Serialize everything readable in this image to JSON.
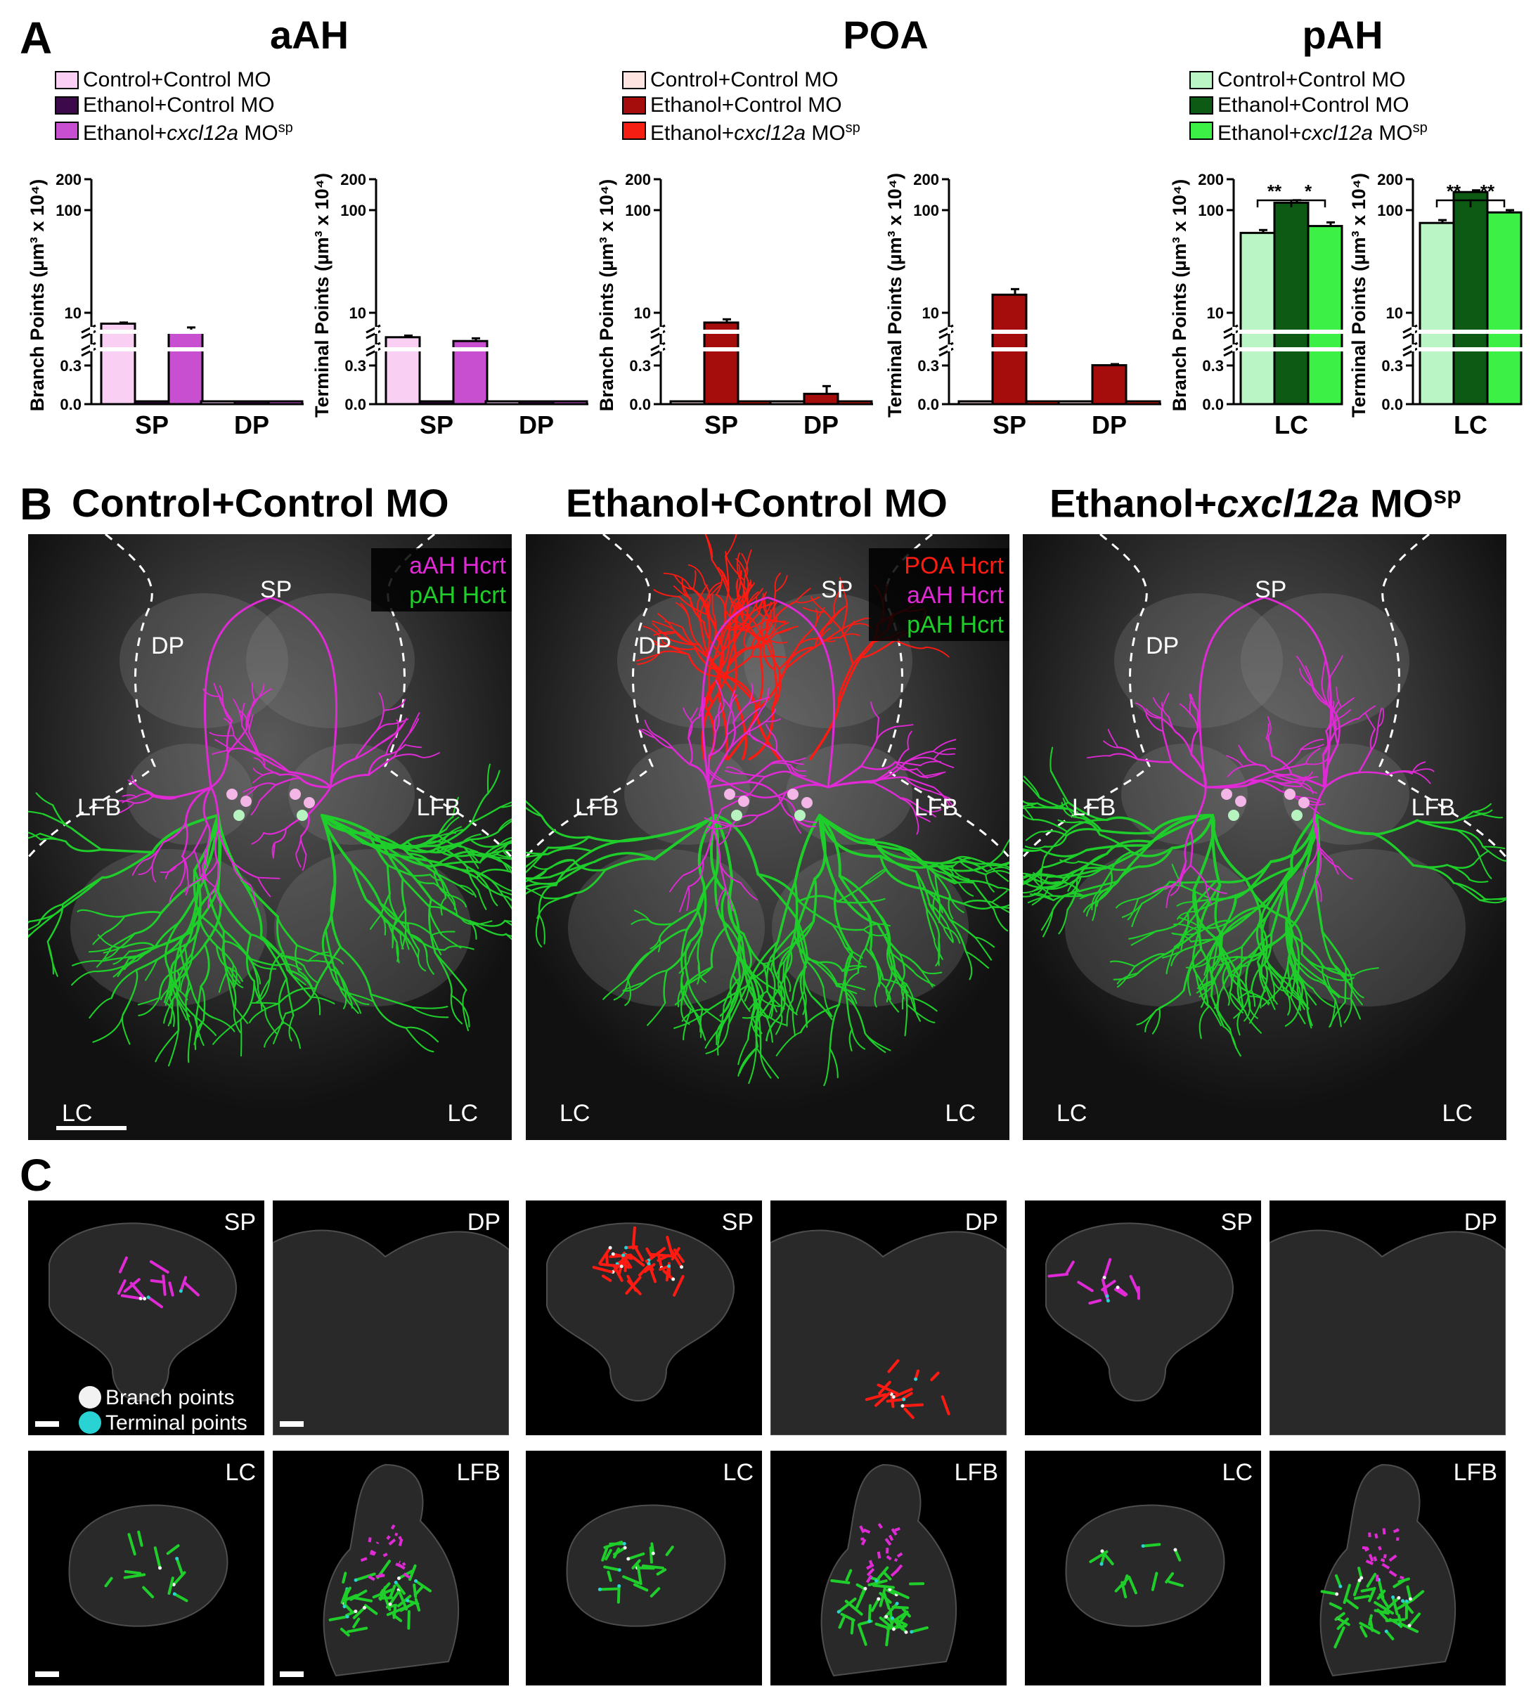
{
  "panel_letters": {
    "a": "A",
    "b": "B",
    "c": "C"
  },
  "regions": {
    "aah": "aAH",
    "poa": "POA",
    "pah": "pAH"
  },
  "legends": {
    "aah": [
      {
        "label": "Control+Control MO",
        "color": "#f9d0f3"
      },
      {
        "label": "Ethanol+Control MO",
        "color": "#3c0a4a"
      },
      {
        "label_pre": "Ethanol+",
        "label_italic": "cxcl12a",
        "label_post": " MO",
        "label_sup": "sp",
        "color": "#c84fcf"
      }
    ],
    "poa": [
      {
        "label": "Control+Control MO",
        "color": "#fde4e0"
      },
      {
        "label": "Ethanol+Control MO",
        "color": "#a50d0d"
      },
      {
        "label_pre": "Ethanol+",
        "label_italic": "cxcl12a",
        "label_post": " MO",
        "label_sup": "sp",
        "color": "#f41e12"
      }
    ],
    "pah": [
      {
        "label": "Control+Control MO",
        "color": "#baf5c6"
      },
      {
        "label": "Ethanol+Control MO",
        "color": "#0c5a14"
      },
      {
        "label_pre": "Ethanol+",
        "label_italic": "cxcl12a",
        "label_post": " MO",
        "label_sup": "sp",
        "color": "#3df046"
      }
    ]
  },
  "chart_data": [
    {
      "type": "bar",
      "region": "aAH",
      "ylabel": "Branch Points (µm³ x 10⁴)",
      "categories": [
        "SP",
        "DP"
      ],
      "series": [
        {
          "values": [
            8,
            0.0
          ]
        },
        {
          "values": [
            0.0,
            0.0
          ]
        },
        {
          "values": [
            6.5,
            0.0
          ]
        }
      ],
      "errors": [
        [
          0.2,
          0
        ],
        [
          0,
          0
        ],
        [
          0.8,
          0
        ]
      ],
      "ticks": [
        "0.0",
        "0.3",
        "10",
        "100",
        "200"
      ],
      "colors": [
        "#f9d0f3",
        "#3c0a4a",
        "#c84fcf"
      ],
      "significance": []
    },
    {
      "type": "bar",
      "region": "aAH",
      "ylabel": "Terminal Points (µm³ x 10⁴)",
      "categories": [
        "SP",
        "DP"
      ],
      "series": [
        {
          "values": [
            5.5,
            0.0
          ]
        },
        {
          "values": [
            0.0,
            0.0
          ]
        },
        {
          "values": [
            4.8,
            0.0
          ]
        }
      ],
      "errors": [
        [
          0.3,
          0
        ],
        [
          0,
          0
        ],
        [
          0.5,
          0
        ]
      ],
      "ticks": [
        "0.0",
        "0.3",
        "10",
        "100",
        "200"
      ],
      "colors": [
        "#f9d0f3",
        "#3c0a4a",
        "#c84fcf"
      ],
      "significance": []
    },
    {
      "type": "bar",
      "region": "POA",
      "ylabel": "Branch Points (µm³ x 10⁴)",
      "categories": [
        "SP",
        "DP"
      ],
      "series": [
        {
          "values": [
            0.0,
            0.0
          ]
        },
        {
          "values": [
            8.2,
            0.08
          ]
        },
        {
          "values": [
            0.0,
            0.0
          ]
        }
      ],
      "errors": [
        [
          0,
          0
        ],
        [
          0.6,
          0.06
        ],
        [
          0,
          0
        ]
      ],
      "ticks": [
        "0.0",
        "0.3",
        "10",
        "100",
        "200"
      ],
      "colors": [
        "#fde4e0",
        "#a50d0d",
        "#f41e12"
      ],
      "significance": []
    },
    {
      "type": "bar",
      "region": "POA",
      "ylabel": "Terminal Points (µm³ x 10⁴)",
      "categories": [
        "SP",
        "DP"
      ],
      "series": [
        {
          "values": [
            0.0,
            0.0
          ]
        },
        {
          "values": [
            15,
            0.35
          ]
        },
        {
          "values": [
            0.0,
            0.0
          ]
        }
      ],
      "errors": [
        [
          0,
          0
        ],
        [
          2,
          0.2
        ],
        [
          0,
          0
        ]
      ],
      "ticks": [
        "0.0",
        "0.3",
        "10",
        "100",
        "200"
      ],
      "colors": [
        "#fde4e0",
        "#a50d0d",
        "#f41e12"
      ],
      "significance": []
    },
    {
      "type": "bar",
      "region": "pAH",
      "ylabel": "Branch Points (µm³ x 10⁴)",
      "categories": [
        "LC"
      ],
      "series": [
        {
          "values": [
            60
          ]
        },
        {
          "values": [
            118
          ]
        },
        {
          "values": [
            70
          ]
        }
      ],
      "errors": [
        [
          4
        ],
        [
          7
        ],
        [
          6
        ]
      ],
      "ticks": [
        "0.0",
        "0.3",
        "10",
        "100",
        "200"
      ],
      "colors": [
        "#baf5c6",
        "#0c5a14",
        "#3df046"
      ],
      "significance": [
        {
          "from": 0,
          "to": 1,
          "label": "**"
        },
        {
          "from": 1,
          "to": 2,
          "label": "*"
        }
      ]
    },
    {
      "type": "bar",
      "region": "pAH",
      "ylabel": "Terminal Points (µm³ x 10⁴)",
      "categories": [
        "LC"
      ],
      "series": [
        {
          "values": [
            75
          ]
        },
        {
          "values": [
            150
          ]
        },
        {
          "values": [
            95
          ]
        }
      ],
      "errors": [
        [
          5
        ],
        [
          6
        ],
        [
          5
        ]
      ],
      "ticks": [
        "0.0",
        "0.3",
        "10",
        "100",
        "200"
      ],
      "colors": [
        "#baf5c6",
        "#0c5a14",
        "#3df046"
      ],
      "significance": [
        {
          "from": 0,
          "to": 1,
          "label": "**"
        },
        {
          "from": 1,
          "to": 2,
          "label": "**"
        }
      ]
    }
  ],
  "panel_b": {
    "titles": [
      {
        "text": "Control+Control MO"
      },
      {
        "text": "Ethanol+Control MO"
      },
      {
        "pre": "Ethanol+",
        "italic": "cxcl12a",
        "post": " MO",
        "sup": "sp"
      }
    ],
    "labels": {
      "sp": "SP",
      "dp": "DP",
      "lfb": "LFB",
      "lc": "LC"
    },
    "legend1": [
      {
        "text": "aAH Hcrt",
        "color": "#e02ad6"
      },
      {
        "text": "pAH Hcrt",
        "color": "#1fce2a"
      }
    ],
    "legend2": [
      {
        "text": "POA Hcrt",
        "color": "#ff1a12"
      },
      {
        "text": "aAH Hcrt",
        "color": "#e02ad6"
      },
      {
        "text": "pAH Hcrt",
        "color": "#1fce2a"
      }
    ]
  },
  "panel_c": {
    "tiles": [
      [
        "SP",
        "DP",
        "SP",
        "DP",
        "SP",
        "DP"
      ],
      [
        "LC",
        "LFB",
        "LC",
        "LFB",
        "LC",
        "LFB"
      ]
    ],
    "legend": [
      {
        "text": "Branch points",
        "color": "#f2f2f2"
      },
      {
        "text": "Terminal points",
        "color": "#29d3d3"
      }
    ]
  }
}
